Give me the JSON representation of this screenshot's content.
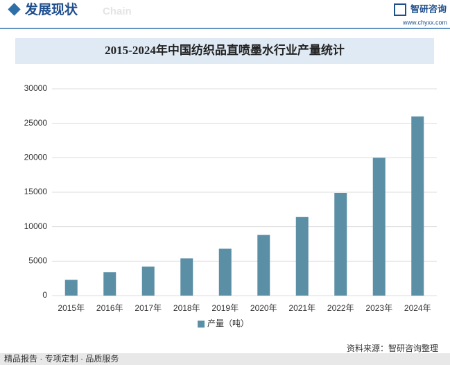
{
  "header": {
    "title": "发展现状",
    "subtitle": "Chain",
    "brand": "智研咨询",
    "url": "www.chyxx.com"
  },
  "chart_data": {
    "type": "bar",
    "title": "2015-2024年中国纺织品直喷墨水行业产量统计",
    "categories": [
      "2015年",
      "2016年",
      "2017年",
      "2018年",
      "2019年",
      "2020年",
      "2021年",
      "2022年",
      "2023年",
      "2024年"
    ],
    "series": [
      {
        "name": "产量（吨）",
        "color": "#5b8fa6",
        "values": [
          2300,
          3400,
          4200,
          5400,
          6800,
          8800,
          11400,
          14900,
          20000,
          26000
        ]
      }
    ],
    "ylim": [
      0,
      30000
    ],
    "yticks": [
      0,
      5000,
      10000,
      15000,
      20000,
      25000,
      30000
    ],
    "grid": true,
    "legend": "bottom"
  },
  "footer": {
    "left": "精品报告 · 专项定制 · 品质服务",
    "source": "资料来源：智研咨询整理"
  }
}
